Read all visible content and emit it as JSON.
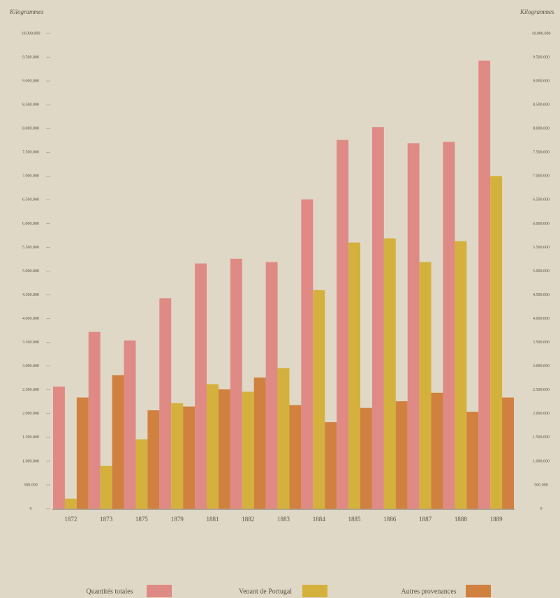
{
  "chart_data": {
    "type": "bar",
    "y_label": "Kilogrammes",
    "categories": [
      "1872",
      "1873",
      "1875",
      "1879",
      "1881",
      "1882",
      "1883",
      "1884",
      "1885",
      "1886",
      "1887",
      "1888",
      "1889"
    ],
    "series": [
      {
        "name": "Quantités totales",
        "color": "#e08a85",
        "values": [
          2570000,
          3720000,
          3540000,
          4430000,
          5160000,
          5260000,
          5190000,
          6510000,
          7760000,
          8030000,
          7690000,
          7720000,
          9430000
        ]
      },
      {
        "name": "Venant de Portugal",
        "color": "#d4b13c",
        "values": [
          210000,
          900000,
          1460000,
          2220000,
          2620000,
          2460000,
          2960000,
          4600000,
          5600000,
          5690000,
          5190000,
          5630000,
          7000000
        ]
      },
      {
        "name": "Autres provenances",
        "color": "#d0813f",
        "values": [
          2340000,
          2810000,
          2070000,
          2150000,
          2510000,
          2760000,
          2180000,
          1820000,
          2120000,
          2260000,
          2440000,
          2040000,
          2340000
        ]
      }
    ],
    "ylim": [
      0,
      10000000
    ],
    "yticks": [
      0,
      {
        "value": 500000,
        "label": "500.000"
      },
      {
        "value": 1000000,
        "label": "1.000.000"
      },
      {
        "value": 1500000,
        "label": "1.500.000"
      },
      {
        "value": 2000000,
        "label": "2.000.000"
      },
      {
        "value": 2500000,
        "label": "2.500.000"
      },
      {
        "value": 3000000,
        "label": "3.000.000"
      },
      {
        "value": 3500000,
        "label": "3.500.000"
      },
      {
        "value": 4000000,
        "label": "4.000.000"
      },
      {
        "value": 4500000,
        "label": "4.500.000"
      },
      {
        "value": 5000000,
        "label": "5.000.000"
      },
      {
        "value": 5500000,
        "label": "5.500.000"
      },
      {
        "value": 6000000,
        "label": "6.000.000"
      },
      {
        "value": 6500000,
        "label": "6.500.000"
      },
      {
        "value": 7000000,
        "label": "7.000.000"
      },
      {
        "value": 7500000,
        "label": "7.500.000"
      },
      {
        "value": 8000000,
        "label": "8.000.000"
      },
      {
        "value": 8500000,
        "label": "8.500.000"
      },
      {
        "value": 9000000,
        "label": "9.000.000"
      },
      {
        "value": 9500000,
        "label": "9.500.000"
      },
      {
        "value": 10000000,
        "label": "10.000.000"
      }
    ]
  }
}
